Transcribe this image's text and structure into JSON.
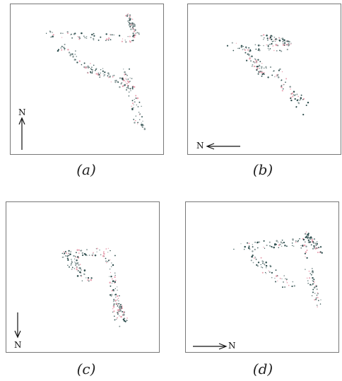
{
  "panels": [
    {
      "id": "a",
      "caption": "(a)",
      "north_label": "N",
      "north_direction": "up"
    },
    {
      "id": "b",
      "caption": "(b)",
      "north_label": "N",
      "north_direction": "left"
    },
    {
      "id": "c",
      "caption": "(c)",
      "north_label": "N",
      "north_direction": "down"
    },
    {
      "id": "d",
      "caption": "(d)",
      "north_label": "N",
      "north_direction": "right"
    }
  ],
  "colors": {
    "points_dark": "#2f4f4f",
    "points_gray": "#8a9a9a",
    "points_pink": "#e8a0b0",
    "frame": "#777777"
  }
}
